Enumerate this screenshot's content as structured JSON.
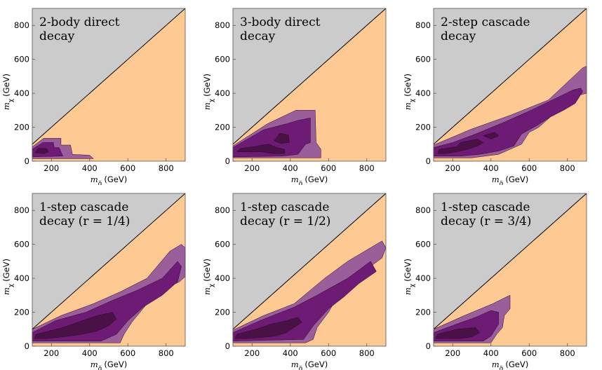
{
  "colors": {
    "excluded": "#cbcbcb",
    "allowed": "#ffc993",
    "light": "#9a5f9a",
    "mid": "#6e1b75",
    "dark": "#4a1146"
  },
  "chart_data": [
    {
      "type": "heatmap",
      "title_lines": [
        "2-body direct",
        "decay"
      ],
      "xlabel": "m_g̃ (GeV)",
      "ylabel": "m_χ (GeV)",
      "xlim": [
        100,
        900
      ],
      "ylim": [
        0,
        900
      ],
      "xticks": [
        "200",
        "400",
        "600",
        "800"
      ],
      "yticks": [
        "0",
        "200",
        "400",
        "600",
        "800"
      ],
      "kinematic_boundary": [
        [
          100,
          100
        ],
        [
          900,
          900
        ]
      ],
      "regions": [
        {
          "level": "light",
          "points": [
            [
              100,
              20
            ],
            [
              100,
              85
            ],
            [
              160,
              135
            ],
            [
              250,
              135
            ],
            [
              250,
              95
            ],
            [
              300,
              95
            ],
            [
              310,
              40
            ],
            [
              400,
              35
            ],
            [
              420,
              15
            ],
            [
              100,
              15
            ]
          ]
        },
        {
          "level": "mid",
          "points": [
            [
              100,
              25
            ],
            [
              100,
              70
            ],
            [
              155,
              110
            ],
            [
              210,
              110
            ],
            [
              215,
              80
            ],
            [
              240,
              80
            ],
            [
              260,
              30
            ],
            [
              100,
              25
            ]
          ]
        },
        {
          "level": "dark",
          "points": [
            [
              115,
              50
            ],
            [
              130,
              75
            ],
            [
              175,
              75
            ],
            [
              185,
              55
            ],
            [
              160,
              45
            ]
          ]
        }
      ]
    },
    {
      "type": "heatmap",
      "title_lines": [
        "3-body direct",
        "decay"
      ],
      "xlabel": "m_g̃ (GeV)",
      "ylabel": "m_χ (GeV)",
      "xlim": [
        100,
        900
      ],
      "ylim": [
        0,
        900
      ],
      "xticks": [
        "200",
        "400",
        "600",
        "800"
      ],
      "yticks": [
        "0",
        "200",
        "400",
        "600",
        "800"
      ],
      "kinematic_boundary": [
        [
          100,
          100
        ],
        [
          900,
          900
        ]
      ],
      "regions": [
        {
          "level": "light",
          "points": [
            [
              100,
              20
            ],
            [
              100,
              90
            ],
            [
              280,
              220
            ],
            [
              430,
              300
            ],
            [
              530,
              300
            ],
            [
              535,
              110
            ],
            [
              560,
              70
            ],
            [
              560,
              20
            ]
          ]
        },
        {
          "level": "mid",
          "points": [
            [
              100,
              25
            ],
            [
              100,
              80
            ],
            [
              260,
              185
            ],
            [
              380,
              220
            ],
            [
              440,
              240
            ],
            [
              505,
              255
            ],
            [
              505,
              110
            ],
            [
              480,
              100
            ],
            [
              440,
              40
            ],
            [
              360,
              30
            ]
          ]
        },
        {
          "level": "dark",
          "points": [
            [
              120,
              55
            ],
            [
              140,
              75
            ],
            [
              210,
              85
            ],
            [
              250,
              95
            ],
            [
              290,
              100
            ],
            [
              330,
              80
            ],
            [
              370,
              70
            ],
            [
              370,
              45
            ],
            [
              310,
              45
            ],
            [
              250,
              55
            ],
            [
              160,
              55
            ]
          ]
        },
        {
          "level": "dark",
          "points": [
            [
              315,
              120
            ],
            [
              345,
              165
            ],
            [
              390,
              155
            ],
            [
              395,
              110
            ],
            [
              350,
              105
            ]
          ]
        }
      ]
    },
    {
      "type": "heatmap",
      "title_lines": [
        "2-step cascade",
        "decay"
      ],
      "xlabel": "m_g̃ (GeV)",
      "ylabel": "m_χ (GeV)",
      "xlim": [
        100,
        900
      ],
      "ylim": [
        0,
        900
      ],
      "xticks": [
        "200",
        "400",
        "600",
        "800"
      ],
      "yticks": [
        "0",
        "200",
        "400",
        "600",
        "800"
      ],
      "kinematic_boundary": [
        [
          100,
          100
        ],
        [
          900,
          900
        ]
      ],
      "regions": [
        {
          "level": "light",
          "points": [
            [
              100,
              20
            ],
            [
              100,
              95
            ],
            [
              300,
              190
            ],
            [
              500,
              270
            ],
            [
              700,
              360
            ],
            [
              880,
              550
            ],
            [
              900,
              560
            ],
            [
              900,
              400
            ],
            [
              830,
              380
            ],
            [
              780,
              330
            ],
            [
              720,
              270
            ],
            [
              650,
              200
            ],
            [
              600,
              170
            ],
            [
              560,
              100
            ],
            [
              440,
              40
            ],
            [
              300,
              20
            ]
          ]
        },
        {
          "level": "mid",
          "points": [
            [
              100,
              30
            ],
            [
              100,
              80
            ],
            [
              200,
              110
            ],
            [
              320,
              160
            ],
            [
              470,
              230
            ],
            [
              610,
              300
            ],
            [
              720,
              360
            ],
            [
              830,
              420
            ],
            [
              870,
              430
            ],
            [
              880,
              410
            ],
            [
              840,
              340
            ],
            [
              780,
              300
            ],
            [
              710,
              260
            ],
            [
              640,
              210
            ],
            [
              560,
              160
            ],
            [
              520,
              90
            ],
            [
              440,
              60
            ],
            [
              340,
              40
            ],
            [
              240,
              30
            ]
          ]
        },
        {
          "level": "dark",
          "points": [
            [
              120,
              45
            ],
            [
              130,
              70
            ],
            [
              220,
              85
            ],
            [
              240,
              110
            ],
            [
              330,
              130
            ],
            [
              360,
              110
            ],
            [
              330,
              90
            ],
            [
              280,
              70
            ],
            [
              220,
              55
            ],
            [
              160,
              45
            ]
          ]
        },
        {
          "level": "dark",
          "points": [
            [
              360,
              150
            ],
            [
              420,
              170
            ],
            [
              440,
              150
            ],
            [
              400,
              130
            ]
          ]
        }
      ]
    },
    {
      "type": "heatmap",
      "title_lines": [
        "1-step cascade",
        "decay (r = 1/4)"
      ],
      "xlabel": "m_g̃ (GeV)",
      "ylabel": "m_χ (GeV)",
      "xlim": [
        100,
        900
      ],
      "ylim": [
        0,
        900
      ],
      "xticks": [
        "200",
        "400",
        "600",
        "800"
      ],
      "yticks": [
        "0",
        "200",
        "400",
        "600",
        "800"
      ],
      "kinematic_boundary": [
        [
          100,
          100
        ],
        [
          900,
          900
        ]
      ],
      "regions": [
        {
          "level": "light",
          "points": [
            [
              100,
              20
            ],
            [
              100,
              100
            ],
            [
              250,
              180
            ],
            [
              420,
              250
            ],
            [
              560,
              320
            ],
            [
              700,
              400
            ],
            [
              820,
              560
            ],
            [
              880,
              600
            ],
            [
              900,
              580
            ],
            [
              900,
              410
            ],
            [
              870,
              380
            ],
            [
              780,
              330
            ],
            [
              700,
              250
            ],
            [
              620,
              140
            ],
            [
              580,
              70
            ],
            [
              560,
              20
            ]
          ]
        },
        {
          "level": "mid",
          "points": [
            [
              100,
              30
            ],
            [
              100,
              80
            ],
            [
              220,
              150
            ],
            [
              380,
              200
            ],
            [
              520,
              270
            ],
            [
              650,
              330
            ],
            [
              780,
              400
            ],
            [
              860,
              500
            ],
            [
              880,
              470
            ],
            [
              860,
              380
            ],
            [
              780,
              300
            ],
            [
              680,
              230
            ],
            [
              600,
              150
            ],
            [
              540,
              70
            ],
            [
              460,
              30
            ]
          ]
        },
        {
          "level": "dark",
          "points": [
            [
              110,
              45
            ],
            [
              120,
              70
            ],
            [
              260,
              110
            ],
            [
              360,
              150
            ],
            [
              440,
              180
            ],
            [
              520,
              200
            ],
            [
              540,
              160
            ],
            [
              500,
              120
            ],
            [
              440,
              90
            ],
            [
              360,
              70
            ],
            [
              260,
              55
            ],
            [
              180,
              45
            ]
          ]
        }
      ]
    },
    {
      "type": "heatmap",
      "title_lines": [
        "1-step cascade",
        "decay (r = 1/2)"
      ],
      "xlabel": "m_g̃ (GeV)",
      "ylabel": "m_χ (GeV)",
      "xlim": [
        100,
        900
      ],
      "ylim": [
        0,
        900
      ],
      "xticks": [
        "200",
        "400",
        "600",
        "800"
      ],
      "yticks": [
        "0",
        "200",
        "400",
        "600",
        "800"
      ],
      "kinematic_boundary": [
        [
          100,
          100
        ],
        [
          900,
          900
        ]
      ],
      "regions": [
        {
          "level": "light",
          "points": [
            [
              100,
              20
            ],
            [
              100,
              95
            ],
            [
              260,
              180
            ],
            [
              420,
              250
            ],
            [
              580,
              400
            ],
            [
              700,
              500
            ],
            [
              880,
              620
            ],
            [
              900,
              580
            ],
            [
              880,
              520
            ],
            [
              820,
              470
            ],
            [
              700,
              370
            ],
            [
              640,
              280
            ],
            [
              600,
              200
            ],
            [
              540,
              110
            ],
            [
              520,
              40
            ],
            [
              480,
              20
            ]
          ]
        },
        {
          "level": "mid",
          "points": [
            [
              100,
              30
            ],
            [
              100,
              80
            ],
            [
              240,
              150
            ],
            [
              420,
              230
            ],
            [
              540,
              300
            ],
            [
              700,
              400
            ],
            [
              820,
              500
            ],
            [
              850,
              440
            ],
            [
              760,
              370
            ],
            [
              680,
              290
            ],
            [
              600,
              220
            ],
            [
              520,
              120
            ],
            [
              470,
              40
            ]
          ]
        },
        {
          "level": "dark",
          "points": [
            [
              110,
              45
            ],
            [
              120,
              70
            ],
            [
              220,
              100
            ],
            [
              300,
              130
            ],
            [
              380,
              150
            ],
            [
              440,
              170
            ],
            [
              460,
              140
            ],
            [
              420,
              110
            ],
            [
              380,
              80
            ],
            [
              320,
              60
            ],
            [
              240,
              50
            ],
            [
              170,
              45
            ]
          ]
        }
      ]
    },
    {
      "type": "heatmap",
      "title_lines": [
        "1-step cascade",
        "decay (r = 3/4)"
      ],
      "xlabel": "m_g̃ (GeV)",
      "ylabel": "m_χ (GeV)",
      "xlim": [
        100,
        900
      ],
      "ylim": [
        0,
        900
      ],
      "xticks": [
        "200",
        "400",
        "600",
        "800"
      ],
      "yticks": [
        "0",
        "200",
        "400",
        "600",
        "800"
      ],
      "kinematic_boundary": [
        [
          100,
          100
        ],
        [
          900,
          900
        ]
      ],
      "regions": [
        {
          "level": "light",
          "points": [
            [
              100,
              20
            ],
            [
              100,
              100
            ],
            [
              260,
              180
            ],
            [
              410,
              250
            ],
            [
              480,
              290
            ],
            [
              500,
              300
            ],
            [
              500,
              220
            ],
            [
              470,
              180
            ],
            [
              460,
              110
            ],
            [
              430,
              70
            ],
            [
              400,
              20
            ]
          ]
        },
        {
          "level": "mid",
          "points": [
            [
              100,
              30
            ],
            [
              100,
              80
            ],
            [
              220,
              130
            ],
            [
              320,
              170
            ],
            [
              400,
              210
            ],
            [
              440,
              200
            ],
            [
              440,
              130
            ],
            [
              400,
              60
            ],
            [
              360,
              30
            ]
          ]
        },
        {
          "level": "dark",
          "points": [
            [
              110,
              45
            ],
            [
              120,
              70
            ],
            [
              220,
              100
            ],
            [
              320,
              110
            ],
            [
              340,
              80
            ],
            [
              300,
              55
            ],
            [
              240,
              45
            ],
            [
              170,
              45
            ]
          ]
        }
      ]
    }
  ]
}
